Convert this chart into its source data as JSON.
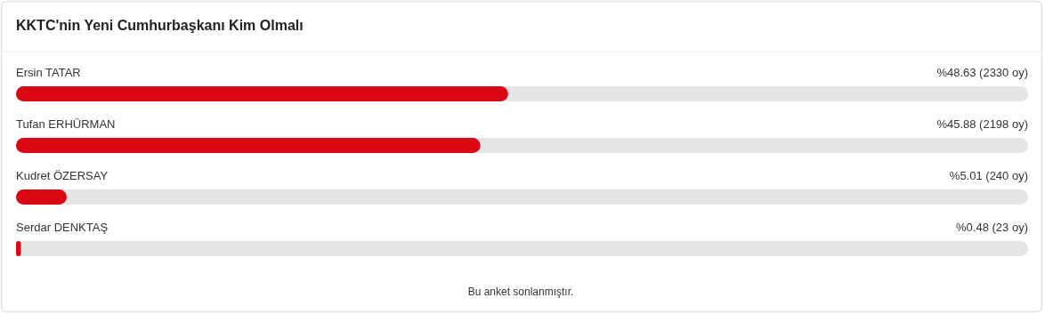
{
  "chart_data": {
    "type": "bar",
    "orientation": "horizontal",
    "title": "KKTC'nin Yeni Cumhurbaşkanı Kim Olmalı",
    "categories": [
      "Ersin TATAR",
      "Tufan ERHÜRMAN",
      "Kudret ÖZERSAY",
      "Serdar DENKTAŞ"
    ],
    "values": [
      48.63,
      45.88,
      5.01,
      0.48
    ],
    "value_labels": [
      "%48.63 (2330 oy)",
      "%45.88 (2198 oy)",
      "%5.01 (240 oy)",
      "%0.48 (23 oy)"
    ],
    "color": "#d90812",
    "xlim": [
      0,
      100
    ],
    "annotations": [
      "Bu anket sonlanmıştır."
    ]
  }
}
